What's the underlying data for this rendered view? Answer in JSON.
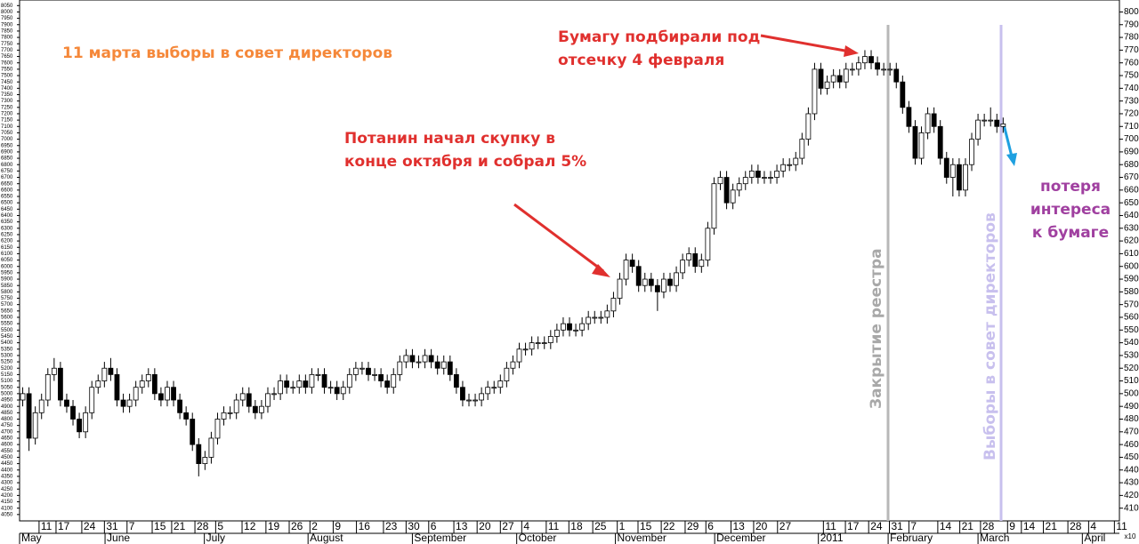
{
  "chart_data": {
    "type": "candlestick",
    "up_color": "#ffffff",
    "down_color": "#000000",
    "candles": {
      "open": [
        4950,
        5000,
        4650,
        4850,
        4950,
        5150,
        5200,
        4950,
        4900,
        4800,
        4700,
        4850,
        5050,
        5100,
        5200,
        5150,
        4950,
        4900,
        4950,
        5050,
        5100,
        5150,
        5000,
        4950,
        5050,
        4950,
        4850,
        4800,
        4600,
        4450,
        4500,
        4650,
        4800,
        4850,
        4850,
        4950,
        5000,
        4900,
        4850,
        4900,
        5000,
        5000,
        5100,
        5050,
        5050,
        5100,
        5050,
        5150,
        5150,
        5050,
        5050,
        5000,
        5050,
        5150,
        5200,
        5200,
        5150,
        5150,
        5100,
        5050,
        5150,
        5250,
        5300,
        5250,
        5250,
        5300,
        5250,
        5200,
        5250,
        5150,
        5050,
        4950,
        4950,
        4950,
        5000,
        5050,
        5050,
        5100,
        5200,
        5250,
        5350,
        5350,
        5400,
        5400,
        5400,
        5450,
        5500,
        5550,
        5500,
        5500,
        5550,
        5600,
        5600,
        5600,
        5650,
        5750,
        5900,
        6050,
        6000,
        5850,
        5900,
        5850,
        5800,
        5900,
        5850,
        5950,
        6050,
        6100,
        6000,
        6050,
        6300,
        6650,
        6700,
        6500,
        6600,
        6650,
        6700,
        6750,
        6700,
        6700,
        6700,
        6750,
        6800,
        6800,
        6850,
        7000,
        7200,
        7550,
        7400,
        7450,
        7500,
        7450,
        7550,
        7550,
        7600,
        7650,
        7600,
        7550,
        7550,
        7550,
        7450,
        7250,
        7100,
        6850,
        7050,
        7200,
        7100,
        6850,
        6700,
        6800,
        6600,
        6800,
        7000,
        7150,
        7150,
        7150,
        7100
      ],
      "high": [
        5050,
        5050,
        4900,
        5000,
        5200,
        5280,
        5250,
        5000,
        4950,
        4850,
        4900,
        5100,
        5150,
        5250,
        5280,
        5200,
        5000,
        5000,
        5100,
        5150,
        5200,
        5200,
        5050,
        5100,
        5100,
        5000,
        4900,
        4850,
        4650,
        4550,
        4700,
        4850,
        4900,
        4900,
        5000,
        5050,
        5050,
        4950,
        4950,
        5050,
        5050,
        5150,
        5150,
        5100,
        5150,
        5150,
        5200,
        5200,
        5200,
        5100,
        5100,
        5100,
        5200,
        5250,
        5250,
        5250,
        5200,
        5200,
        5150,
        5200,
        5300,
        5350,
        5350,
        5300,
        5350,
        5350,
        5300,
        5300,
        5300,
        5200,
        5100,
        5000,
        5000,
        5050,
        5100,
        5100,
        5150,
        5250,
        5300,
        5400,
        5400,
        5450,
        5450,
        5450,
        5500,
        5550,
        5600,
        5600,
        5550,
        5600,
        5650,
        5650,
        5650,
        5700,
        5800,
        5950,
        6100,
        6100,
        6050,
        5950,
        5950,
        5900,
        5950,
        5950,
        6000,
        6100,
        6150,
        6150,
        6100,
        6350,
        6700,
        6750,
        6750,
        6650,
        6700,
        6750,
        6800,
        6800,
        6750,
        6750,
        6800,
        6850,
        6850,
        6900,
        7050,
        7250,
        7600,
        7600,
        7500,
        7550,
        7550,
        7600,
        7600,
        7650,
        7700,
        7700,
        7650,
        7600,
        7600,
        7600,
        7500,
        7300,
        7150,
        7100,
        7250,
        7250,
        7150,
        6900,
        6850,
        6850,
        6850,
        7050,
        7200,
        7200,
        7250,
        7200,
        7170
      ],
      "low": [
        4900,
        4550,
        4600,
        4800,
        4900,
        5100,
        4900,
        4850,
        4750,
        4650,
        4650,
        4800,
        5000,
        5050,
        5100,
        4900,
        4850,
        4850,
        4900,
        5000,
        5050,
        4950,
        4900,
        4900,
        4900,
        4800,
        4750,
        4550,
        4350,
        4400,
        4450,
        4600,
        4750,
        4800,
        4800,
        4900,
        4850,
        4800,
        4800,
        4850,
        4950,
        4950,
        5000,
        5000,
        5000,
        5000,
        5000,
        5100,
        5000,
        5000,
        4950,
        4950,
        5000,
        5100,
        5150,
        5100,
        5100,
        5050,
        5000,
        5000,
        5100,
        5200,
        5200,
        5200,
        5200,
        5200,
        5150,
        5150,
        5100,
        5000,
        4900,
        4900,
        4900,
        4900,
        4950,
        5000,
        5000,
        5050,
        5150,
        5200,
        5300,
        5300,
        5350,
        5350,
        5350,
        5400,
        5450,
        5450,
        5450,
        5450,
        5500,
        5550,
        5550,
        5550,
        5600,
        5700,
        5850,
        5950,
        5800,
        5800,
        5800,
        5650,
        5750,
        5800,
        5800,
        5900,
        6000,
        5950,
        5950,
        6000,
        6250,
        6600,
        6450,
        6450,
        6550,
        6600,
        6650,
        6650,
        6650,
        6650,
        6650,
        6700,
        6750,
        6750,
        6800,
        6950,
        7150,
        7350,
        7350,
        7400,
        7400,
        7400,
        7500,
        7500,
        7550,
        7550,
        7500,
        7500,
        7500,
        7400,
        7200,
        7050,
        6800,
        6800,
        7000,
        7050,
        6800,
        6650,
        6550,
        6550,
        6550,
        6750,
        6950,
        7100,
        7100,
        7050,
        7050
      ],
      "close": [
        5000,
        4650,
        4850,
        4950,
        5150,
        5200,
        4950,
        4900,
        4800,
        4700,
        4850,
        5050,
        5100,
        5200,
        5150,
        4950,
        4900,
        4950,
        5050,
        5100,
        5150,
        5000,
        4950,
        5050,
        4950,
        4850,
        4800,
        4600,
        4450,
        4500,
        4650,
        4800,
        4850,
        4850,
        4950,
        5000,
        4900,
        4850,
        4900,
        5000,
        5000,
        5100,
        5050,
        5050,
        5100,
        5050,
        5150,
        5150,
        5050,
        5050,
        5000,
        5050,
        5150,
        5200,
        5200,
        5150,
        5150,
        5100,
        5050,
        5150,
        5250,
        5300,
        5250,
        5250,
        5300,
        5250,
        5200,
        5250,
        5150,
        5050,
        4950,
        4950,
        4950,
        5000,
        5050,
        5050,
        5100,
        5200,
        5250,
        5350,
        5350,
        5400,
        5400,
        5400,
        5450,
        5500,
        5550,
        5500,
        5500,
        5550,
        5600,
        5600,
        5600,
        5650,
        5750,
        5900,
        6050,
        6000,
        5850,
        5900,
        5850,
        5800,
        5900,
        5850,
        5950,
        6050,
        6100,
        6000,
        6050,
        6300,
        6650,
        6700,
        6500,
        6600,
        6650,
        6700,
        6750,
        6700,
        6700,
        6700,
        6750,
        6800,
        6800,
        6850,
        7000,
        7200,
        7550,
        7400,
        7450,
        7500,
        7450,
        7550,
        7550,
        7600,
        7650,
        7600,
        7550,
        7550,
        7550,
        7450,
        7250,
        7100,
        6850,
        7050,
        7200,
        7100,
        6850,
        6700,
        6800,
        6600,
        6800,
        7000,
        7150,
        7150,
        7150,
        7100,
        7120
      ]
    },
    "xlim": [
      -0.5,
      174.5
    ],
    "ylim": [
      4000,
      8080
    ],
    "y2lim": [
      400,
      808
    ],
    "yticks": [
      4050,
      4100,
      4150,
      4200,
      4250,
      4300,
      4350,
      4400,
      4450,
      4500,
      4550,
      4600,
      4650,
      4700,
      4750,
      4800,
      4850,
      4900,
      4950,
      5000,
      5050,
      5100,
      5150,
      5200,
      5250,
      5300,
      5350,
      5400,
      5450,
      5500,
      5550,
      5600,
      5650,
      5700,
      5750,
      5800,
      5850,
      5900,
      5950,
      6000,
      6050,
      6100,
      6150,
      6200,
      6250,
      6300,
      6350,
      6400,
      6450,
      6500,
      6550,
      6600,
      6650,
      6700,
      6750,
      6800,
      6850,
      6900,
      6950,
      7000,
      7050,
      7100,
      7150,
      7200,
      7250,
      7300,
      7350,
      7400,
      7450,
      7500,
      7550,
      7600,
      7650,
      7700,
      7750,
      7800,
      7850,
      7900,
      7950,
      8000,
      8050
    ],
    "y2ticks": [
      410,
      420,
      430,
      440,
      450,
      460,
      470,
      480,
      490,
      500,
      510,
      520,
      530,
      540,
      550,
      560,
      570,
      580,
      590,
      600,
      610,
      620,
      630,
      640,
      650,
      660,
      670,
      680,
      690,
      700,
      710,
      720,
      730,
      740,
      750,
      760,
      770,
      780,
      790,
      800
    ],
    "y2_scale_label": "x10",
    "xticks": [
      {
        "value": 2.6,
        "label": "11"
      },
      {
        "value": 5.3,
        "label": "17"
      },
      {
        "value": 9.4,
        "label": "24"
      },
      {
        "value": 13,
        "label": "31"
      },
      {
        "value": 16.6,
        "label": "7"
      },
      {
        "value": 20.6,
        "label": "15"
      },
      {
        "value": 23.7,
        "label": "21"
      },
      {
        "value": 27.4,
        "label": "28"
      },
      {
        "value": 30.7,
        "label": "5"
      },
      {
        "value": 34.9,
        "label": "12"
      },
      {
        "value": 38.7,
        "label": "19"
      },
      {
        "value": 42.4,
        "label": "26"
      },
      {
        "value": 45.7,
        "label": "2"
      },
      {
        "value": 49.4,
        "label": "9"
      },
      {
        "value": 53.1,
        "label": "16"
      },
      {
        "value": 57.4,
        "label": "23"
      },
      {
        "value": 61,
        "label": "30"
      },
      {
        "value": 64.6,
        "label": "6"
      },
      {
        "value": 68.6,
        "label": "13"
      },
      {
        "value": 72.3,
        "label": "20"
      },
      {
        "value": 76,
        "label": "27"
      },
      {
        "value": 79.4,
        "label": "4"
      },
      {
        "value": 83.3,
        "label": "11"
      },
      {
        "value": 86.9,
        "label": "18"
      },
      {
        "value": 90.7,
        "label": "25"
      },
      {
        "value": 94.6,
        "label": "1"
      },
      {
        "value": 97.9,
        "label": "15"
      },
      {
        "value": 101.6,
        "label": "22"
      },
      {
        "value": 105.4,
        "label": "29"
      },
      {
        "value": 108.7,
        "label": "6"
      },
      {
        "value": 112.7,
        "label": "13"
      },
      {
        "value": 116.3,
        "label": "20"
      },
      {
        "value": 120.1,
        "label": "27"
      },
      {
        "value": 127.4,
        "label": "11"
      },
      {
        "value": 130.9,
        "label": "17"
      },
      {
        "value": 134.6,
        "label": "24"
      },
      {
        "value": 137.9,
        "label": "31"
      },
      {
        "value": 141,
        "label": "7"
      },
      {
        "value": 145.6,
        "label": "14"
      },
      {
        "value": 149.1,
        "label": "21"
      },
      {
        "value": 152.4,
        "label": "28"
      },
      {
        "value": 156.7,
        "label": "9"
      },
      {
        "value": 158.9,
        "label": "14"
      },
      {
        "value": 162.4,
        "label": "21"
      },
      {
        "value": 166.3,
        "label": "28"
      },
      {
        "value": 169.6,
        "label": "4"
      },
      {
        "value": 173.7,
        "label": "11"
      }
    ],
    "month_ticks": [
      {
        "value": -0.5,
        "label": "May"
      },
      {
        "value": 13.1,
        "label": "June"
      },
      {
        "value": 28.9,
        "label": "July"
      },
      {
        "value": 45.4,
        "label": "August"
      },
      {
        "value": 62,
        "label": "September"
      },
      {
        "value": 78.6,
        "label": "October"
      },
      {
        "value": 94.3,
        "label": "November"
      },
      {
        "value": 110.1,
        "label": "December"
      },
      {
        "value": 126.6,
        "label": "2011"
      },
      {
        "value": 137.7,
        "label": "February"
      },
      {
        "value": 152,
        "label": "March"
      },
      {
        "value": 168.6,
        "label": "April"
      }
    ],
    "annotations": {
      "election_note": "11 марта выборы в совет директоров",
      "cutoff_note": [
        "Бумагу подбирали под",
        "отсечку 4 февраля"
      ],
      "potanin_note": [
        "Потанин начал скупку в",
        "конце октября и собрал 5%"
      ],
      "interest_note": [
        "потеря",
        "интереса",
        "к бумаге"
      ],
      "registry_line": "Закрытие реестра",
      "election_line": "Выборы в совет директоров"
    }
  }
}
